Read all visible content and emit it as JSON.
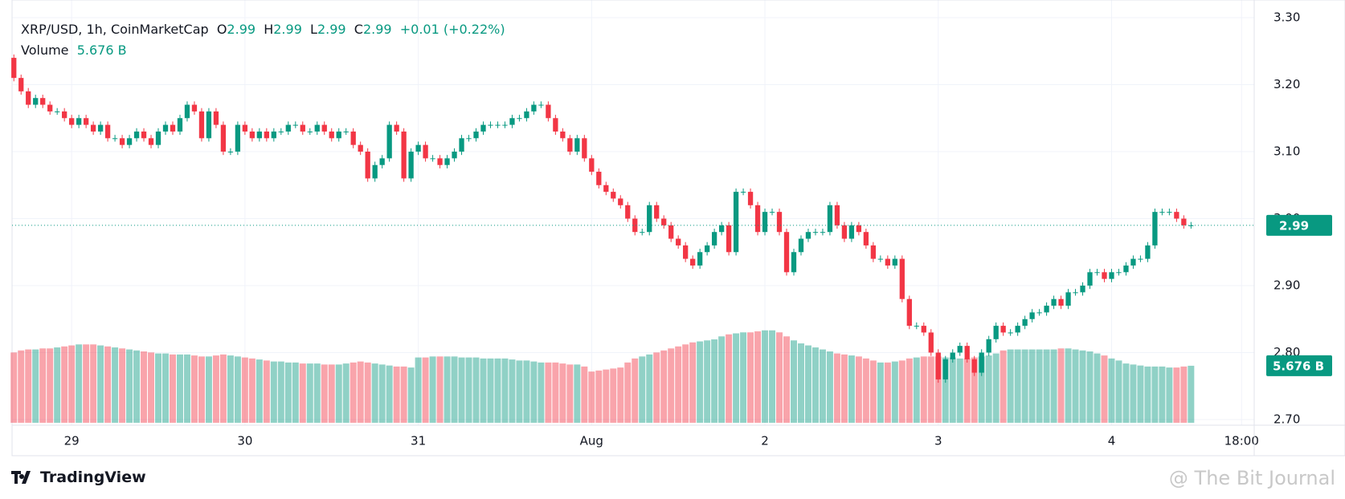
{
  "chart_data": {
    "type": "candlestick",
    "symbol": "XRP/USD, 1h, CoinMarketCap",
    "ohlc": [
      {
        "label": "O",
        "value": "2.99"
      },
      {
        "label": "H",
        "value": "2.99"
      },
      {
        "label": "L",
        "value": "2.99"
      },
      {
        "label": "C",
        "value": "2.99"
      }
    ],
    "change": "+0.01 (+0.22%)",
    "volume_label": "Volume",
    "volume_value": "5.676 B",
    "last_price": {
      "value": 2.99,
      "label": "2.99"
    },
    "up_color": "#089981",
    "down_color": "#f23645",
    "xlim": [
      -0.25,
      171.75
    ],
    "xticks": [
      {
        "value": 8,
        "label": "29"
      },
      {
        "value": 32,
        "label": "30"
      },
      {
        "value": 56,
        "label": "31"
      },
      {
        "value": 80,
        "label": "Aug"
      },
      {
        "value": 104,
        "label": "2"
      },
      {
        "value": 128,
        "label": "3"
      },
      {
        "value": 152,
        "label": "4"
      },
      {
        "value": 170,
        "label": "18:00"
      }
    ],
    "ylim": [
      2.7,
      3.3
    ],
    "yticks": [
      {
        "value": 2.7,
        "label": "2.70"
      },
      {
        "value": 2.8,
        "label": "2.80"
      },
      {
        "value": 2.9,
        "label": "2.90"
      },
      {
        "value": 3.0,
        "label": "3.00"
      },
      {
        "value": 3.1,
        "label": "3.10"
      },
      {
        "value": 3.2,
        "label": "3.20"
      },
      {
        "value": 3.3,
        "label": "3.30"
      }
    ],
    "grid": true,
    "volume_ylim": [
      0,
      40
    ],
    "open": [
      3.24,
      3.21,
      3.19,
      3.17,
      3.18,
      3.17,
      3.16,
      3.16,
      3.15,
      3.14,
      3.15,
      3.14,
      3.13,
      3.14,
      3.12,
      3.12,
      3.11,
      3.12,
      3.13,
      3.12,
      3.11,
      3.13,
      3.14,
      3.13,
      3.15,
      3.17,
      3.16,
      3.12,
      3.16,
      3.14,
      3.1,
      3.1,
      3.14,
      3.13,
      3.12,
      3.13,
      3.12,
      3.13,
      3.13,
      3.14,
      3.14,
      3.13,
      3.13,
      3.14,
      3.13,
      3.12,
      3.13,
      3.13,
      3.11,
      3.1,
      3.06,
      3.08,
      3.09,
      3.14,
      3.13,
      3.06,
      3.1,
      3.11,
      3.09,
      3.09,
      3.08,
      3.09,
      3.1,
      3.12,
      3.12,
      3.13,
      3.14,
      3.14,
      3.14,
      3.14,
      3.15,
      3.15,
      3.16,
      3.17,
      3.17,
      3.15,
      3.13,
      3.12,
      3.1,
      3.12,
      3.09,
      3.07,
      3.05,
      3.04,
      3.03,
      3.02,
      3.0,
      2.98,
      2.98,
      3.02,
      3.0,
      2.99,
      2.97,
      2.96,
      2.94,
      2.93,
      2.95,
      2.96,
      2.98,
      2.99,
      2.95,
      3.04,
      3.04,
      3.02,
      2.98,
      3.01,
      3.01,
      2.98,
      2.92,
      2.95,
      2.97,
      2.98,
      2.98,
      2.98,
      3.02,
      2.99,
      2.97,
      2.99,
      2.98,
      2.96,
      2.94,
      2.94,
      2.93,
      2.94,
      2.88,
      2.84,
      2.84,
      2.83,
      2.8,
      2.76,
      2.79,
      2.8,
      2.81,
      2.79,
      2.77,
      2.8,
      2.82,
      2.84,
      2.83,
      2.83,
      2.84,
      2.85,
      2.86,
      2.86,
      2.87,
      2.88,
      2.87,
      2.89,
      2.89,
      2.9,
      2.92,
      2.92,
      2.91,
      2.92,
      2.92,
      2.93,
      2.94,
      2.94,
      2.96,
      3.01,
      3.01,
      3.01,
      3.0,
      2.99
    ],
    "high": [
      3.245,
      3.215,
      3.195,
      3.185,
      3.185,
      3.175,
      3.165,
      3.165,
      3.155,
      3.155,
      3.155,
      3.145,
      3.145,
      3.145,
      3.125,
      3.125,
      3.125,
      3.135,
      3.135,
      3.125,
      3.135,
      3.145,
      3.145,
      3.155,
      3.175,
      3.175,
      3.165,
      3.165,
      3.165,
      3.145,
      3.105,
      3.145,
      3.145,
      3.135,
      3.135,
      3.135,
      3.135,
      3.135,
      3.145,
      3.145,
      3.145,
      3.135,
      3.145,
      3.145,
      3.135,
      3.135,
      3.135,
      3.135,
      3.115,
      3.105,
      3.085,
      3.095,
      3.145,
      3.145,
      3.135,
      3.105,
      3.115,
      3.115,
      3.095,
      3.095,
      3.095,
      3.105,
      3.125,
      3.125,
      3.135,
      3.145,
      3.145,
      3.145,
      3.145,
      3.155,
      3.155,
      3.165,
      3.175,
      3.175,
      3.175,
      3.155,
      3.135,
      3.125,
      3.125,
      3.125,
      3.095,
      3.075,
      3.055,
      3.045,
      3.035,
      3.025,
      3.005,
      2.985,
      3.025,
      3.025,
      3.005,
      2.995,
      2.975,
      2.965,
      2.945,
      2.955,
      2.965,
      2.985,
      2.995,
      2.995,
      3.045,
      3.045,
      3.045,
      3.025,
      3.015,
      3.015,
      3.015,
      2.985,
      2.955,
      2.975,
      2.985,
      2.985,
      2.985,
      3.025,
      3.025,
      2.995,
      2.995,
      2.995,
      2.985,
      2.965,
      2.945,
      2.945,
      2.945,
      2.945,
      2.885,
      2.845,
      2.845,
      2.835,
      2.805,
      2.795,
      2.805,
      2.815,
      2.815,
      2.795,
      2.805,
      2.825,
      2.845,
      2.845,
      2.835,
      2.845,
      2.855,
      2.865,
      2.865,
      2.875,
      2.885,
      2.885,
      2.895,
      2.895,
      2.905,
      2.925,
      2.925,
      2.925,
      2.925,
      2.925,
      2.935,
      2.945,
      2.945,
      2.965,
      3.015,
      3.015,
      3.015,
      3.015,
      3.005,
      2.995
    ],
    "low": [
      3.205,
      3.185,
      3.165,
      3.165,
      3.165,
      3.155,
      3.155,
      3.145,
      3.135,
      3.135,
      3.135,
      3.125,
      3.125,
      3.115,
      3.115,
      3.105,
      3.105,
      3.115,
      3.115,
      3.105,
      3.105,
      3.125,
      3.125,
      3.125,
      3.145,
      3.155,
      3.115,
      3.115,
      3.135,
      3.095,
      3.095,
      3.095,
      3.125,
      3.115,
      3.115,
      3.115,
      3.115,
      3.125,
      3.125,
      3.135,
      3.125,
      3.125,
      3.125,
      3.125,
      3.115,
      3.115,
      3.125,
      3.105,
      3.095,
      3.055,
      3.055,
      3.075,
      3.085,
      3.125,
      3.055,
      3.055,
      3.095,
      3.085,
      3.085,
      3.075,
      3.075,
      3.085,
      3.095,
      3.115,
      3.115,
      3.125,
      3.135,
      3.135,
      3.135,
      3.135,
      3.145,
      3.145,
      3.155,
      3.165,
      3.145,
      3.125,
      3.115,
      3.095,
      3.095,
      3.085,
      3.065,
      3.045,
      3.035,
      3.025,
      3.015,
      2.995,
      2.975,
      2.975,
      2.975,
      2.995,
      2.985,
      2.965,
      2.955,
      2.935,
      2.925,
      2.925,
      2.945,
      2.955,
      2.975,
      2.945,
      2.945,
      3.035,
      3.015,
      2.975,
      2.975,
      3.005,
      2.975,
      2.915,
      2.915,
      2.945,
      2.965,
      2.975,
      2.975,
      2.975,
      2.985,
      2.965,
      2.965,
      2.975,
      2.955,
      2.935,
      2.935,
      2.925,
      2.925,
      2.875,
      2.835,
      2.835,
      2.825,
      2.795,
      2.755,
      2.755,
      2.785,
      2.795,
      2.785,
      2.765,
      2.765,
      2.795,
      2.815,
      2.825,
      2.825,
      2.825,
      2.835,
      2.845,
      2.855,
      2.855,
      2.865,
      2.865,
      2.865,
      2.885,
      2.885,
      2.895,
      2.915,
      2.905,
      2.905,
      2.915,
      2.915,
      2.925,
      2.935,
      2.935,
      2.955,
      3.005,
      3.005,
      2.995,
      2.985,
      2.985
    ],
    "close": [
      3.21,
      3.19,
      3.17,
      3.18,
      3.17,
      3.16,
      3.16,
      3.15,
      3.14,
      3.15,
      3.14,
      3.13,
      3.14,
      3.12,
      3.12,
      3.11,
      3.12,
      3.13,
      3.12,
      3.11,
      3.13,
      3.14,
      3.13,
      3.15,
      3.17,
      3.16,
      3.12,
      3.16,
      3.14,
      3.1,
      3.1,
      3.14,
      3.13,
      3.12,
      3.13,
      3.12,
      3.13,
      3.13,
      3.14,
      3.14,
      3.13,
      3.13,
      3.14,
      3.13,
      3.12,
      3.13,
      3.13,
      3.11,
      3.1,
      3.06,
      3.08,
      3.09,
      3.14,
      3.13,
      3.06,
      3.1,
      3.11,
      3.09,
      3.09,
      3.08,
      3.09,
      3.1,
      3.12,
      3.12,
      3.13,
      3.14,
      3.14,
      3.14,
      3.14,
      3.15,
      3.15,
      3.16,
      3.17,
      3.17,
      3.15,
      3.13,
      3.12,
      3.1,
      3.12,
      3.09,
      3.07,
      3.05,
      3.04,
      3.03,
      3.02,
      3.0,
      2.98,
      2.98,
      3.02,
      3.0,
      2.99,
      2.97,
      2.96,
      2.94,
      2.93,
      2.95,
      2.96,
      2.98,
      2.99,
      2.95,
      3.04,
      3.04,
      3.02,
      2.98,
      3.01,
      3.01,
      2.98,
      2.92,
      2.95,
      2.97,
      2.98,
      2.98,
      2.98,
      3.02,
      2.99,
      2.97,
      2.99,
      2.98,
      2.96,
      2.94,
      2.94,
      2.93,
      2.94,
      2.88,
      2.84,
      2.84,
      2.83,
      2.8,
      2.76,
      2.79,
      2.8,
      2.81,
      2.79,
      2.77,
      2.8,
      2.82,
      2.84,
      2.83,
      2.83,
      2.84,
      2.85,
      2.86,
      2.86,
      2.87,
      2.88,
      2.87,
      2.89,
      2.89,
      2.9,
      2.92,
      2.92,
      2.91,
      2.92,
      2.92,
      2.93,
      2.94,
      2.94,
      2.96,
      3.01,
      3.01,
      3.01,
      3.0,
      2.99,
      2.99
    ],
    "volume": [
      7.0,
      7.2,
      7.3,
      7.3,
      7.4,
      7.4,
      7.5,
      7.6,
      7.7,
      7.8,
      7.8,
      7.8,
      7.7,
      7.6,
      7.5,
      7.4,
      7.3,
      7.2,
      7.1,
      7.0,
      6.9,
      6.9,
      6.8,
      6.8,
      6.8,
      6.7,
      6.6,
      6.6,
      6.7,
      6.8,
      6.7,
      6.6,
      6.5,
      6.4,
      6.3,
      6.2,
      6.1,
      6.1,
      6.0,
      6.0,
      5.9,
      5.9,
      5.9,
      5.8,
      5.8,
      5.8,
      5.9,
      6.0,
      6.1,
      6.0,
      5.9,
      5.8,
      5.7,
      5.6,
      5.6,
      5.5,
      6.5,
      6.5,
      6.6,
      6.6,
      6.6,
      6.6,
      6.5,
      6.5,
      6.5,
      6.4,
      6.4,
      6.4,
      6.4,
      6.3,
      6.2,
      6.2,
      6.1,
      6.0,
      6.0,
      6.0,
      5.9,
      5.8,
      5.8,
      5.6,
      5.1,
      5.2,
      5.3,
      5.4,
      5.5,
      6.0,
      6.4,
      6.6,
      6.8,
      7.0,
      7.2,
      7.4,
      7.6,
      7.8,
      8.0,
      8.1,
      8.2,
      8.3,
      8.6,
      8.8,
      8.9,
      9.0,
      9.0,
      9.1,
      9.2,
      9.2,
      9.0,
      8.6,
      8.2,
      7.9,
      7.7,
      7.5,
      7.3,
      7.1,
      6.9,
      6.8,
      6.7,
      6.6,
      6.4,
      6.2,
      6.0,
      6.0,
      6.1,
      6.2,
      6.4,
      6.5,
      6.6,
      6.6,
      6.6,
      6.5,
      6.5,
      6.4,
      6.4,
      6.5,
      6.6,
      6.7,
      6.9,
      7.2,
      7.3,
      7.3,
      7.3,
      7.3,
      7.3,
      7.3,
      7.3,
      7.4,
      7.4,
      7.3,
      7.2,
      7.1,
      6.9,
      6.7,
      6.4,
      6.2,
      5.9,
      5.8,
      5.7,
      5.6,
      5.6,
      5.6,
      5.5,
      5.5,
      5.6,
      5.676
    ]
  },
  "brand": "TradingView",
  "watermark": "@ The Bit Journal"
}
